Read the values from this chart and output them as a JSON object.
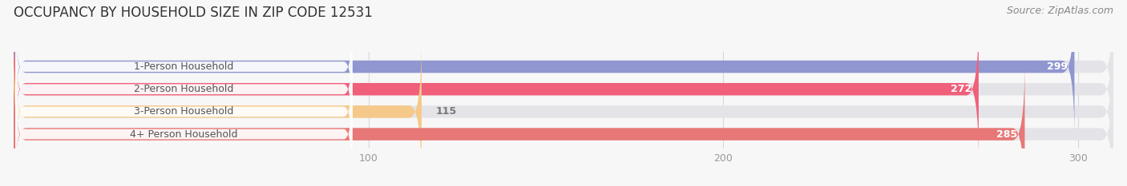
{
  "title": "OCCUPANCY BY HOUSEHOLD SIZE IN ZIP CODE 12531",
  "source": "Source: ZipAtlas.com",
  "categories": [
    "1-Person Household",
    "2-Person Household",
    "3-Person Household",
    "4+ Person Household"
  ],
  "values": [
    299,
    272,
    115,
    285
  ],
  "bar_colors": [
    "#8f96d0",
    "#f0607a",
    "#f5c98a",
    "#e87878"
  ],
  "bar_bg_color": "#e4e4e8",
  "xlim_max": 310,
  "xticks": [
    100,
    200,
    300
  ],
  "title_fontsize": 12,
  "source_fontsize": 9,
  "label_fontsize": 9,
  "value_fontsize": 9,
  "bar_height": 0.55,
  "bar_gap": 1.0,
  "background_color": "#f7f7f7",
  "label_pill_color": "#ffffff",
  "label_text_color": "#555555",
  "value_text_color_inside": "#ffffff",
  "value_text_color_outside": "#777777",
  "grid_color": "#d8d8d8"
}
